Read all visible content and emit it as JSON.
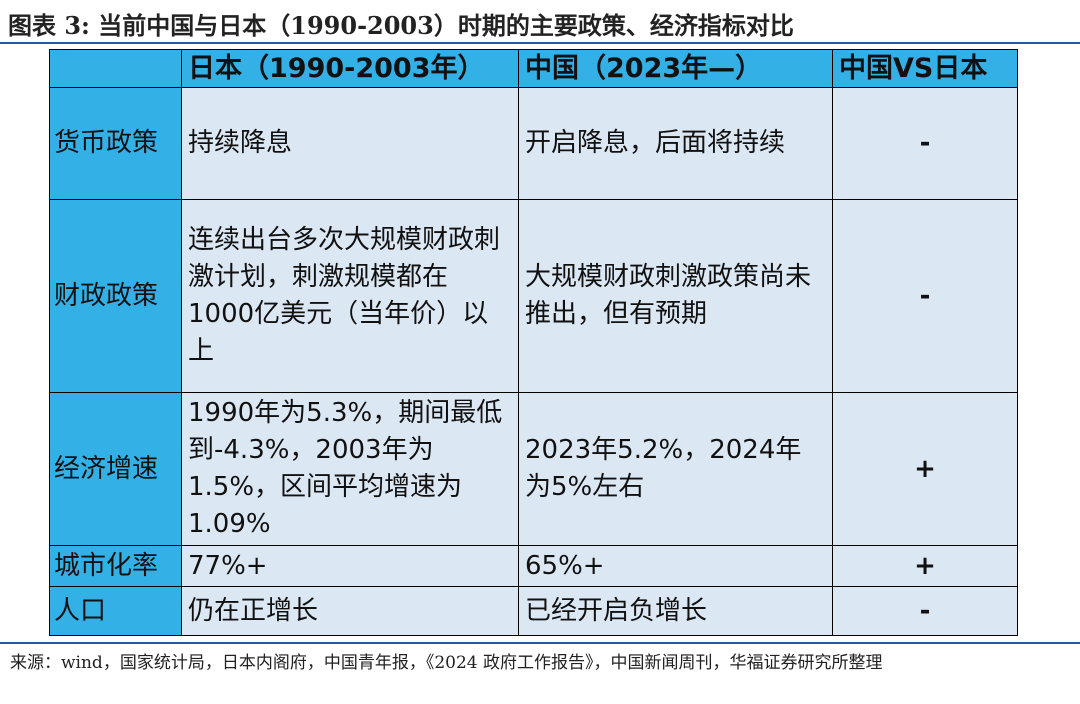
{
  "title": "图表 3:  当前中国与日本（1990-2003）时期的主要政策、经济指标对比",
  "table": {
    "headers": [
      "",
      "日本（1990-2003年）",
      "中国（2023年—）",
      "中国VS日本"
    ],
    "rows": [
      {
        "label": "货币政策",
        "japan": "持续降息",
        "china": "开启降息，后面将持续",
        "compare": "-"
      },
      {
        "label": "财政政策",
        "japan": "连续出台多次大规模财政刺激计划，刺激规模都在1000亿美元（当年价）以上",
        "china": "大规模财政刺激政策尚未推出，但有预期",
        "compare": "-"
      },
      {
        "label": "经济增速",
        "japan": "1990年为5.3%，期间最低到-4.3%，2003年为1.5%，区间平均增速为1.09%",
        "china": "2023年5.2%，2024年为5%左右",
        "compare": "+"
      },
      {
        "label": "城市化率",
        "japan": "77%+",
        "china": "65%+",
        "compare": "+"
      },
      {
        "label": "人口",
        "japan": "仍在正增长",
        "china": "已经开启负增长",
        "compare": "-"
      }
    ]
  },
  "source": "来源：wind，国家统计局，日本内阁府，中国青年报，《2024 政府工作报告》，中国新闻周刊，华福证券研究所整理",
  "colors": {
    "header_bg": "#33b1e6",
    "cell_bg": "#dbe7f3",
    "minus": "#21b05a",
    "plus": "#e0232a"
  }
}
